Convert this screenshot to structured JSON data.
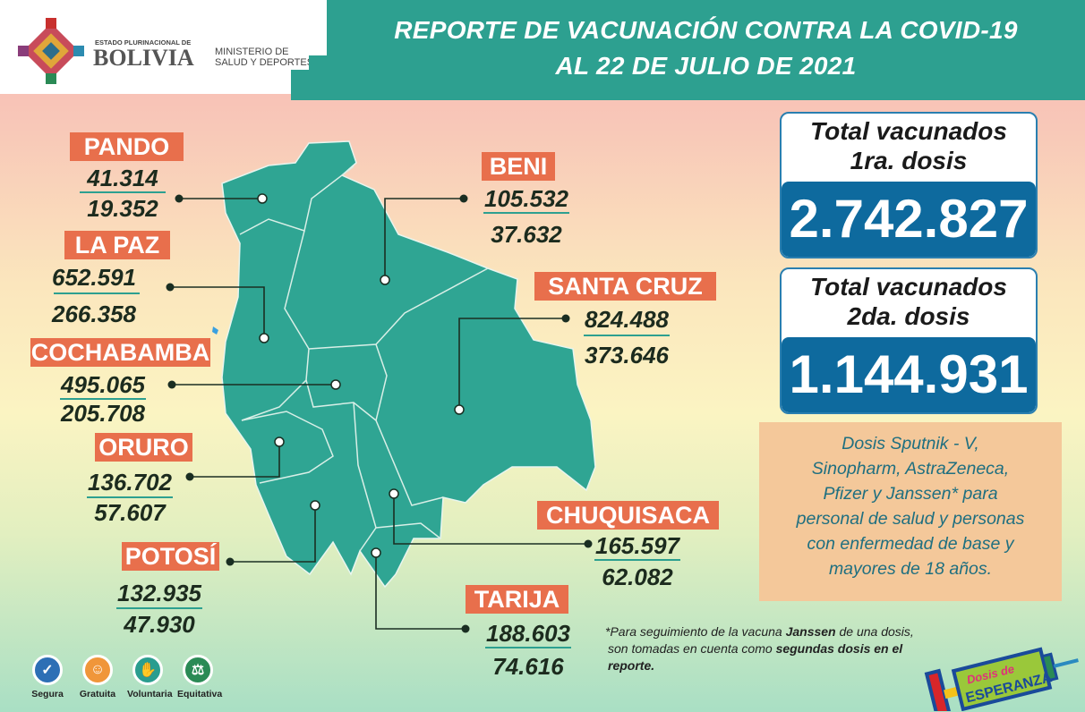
{
  "header": {
    "estado": "ESTADO PLURINACIONAL DE",
    "country": "BOLIVIA",
    "ministry_line1": "MINISTERIO DE",
    "ministry_line2": "SALUD Y DEPORTES",
    "title_line1": "REPORTE DE VACUNACIÓN CONTRA LA COVID-19",
    "title_line2": "AL 22 DE JULIO DE 2021"
  },
  "departments": [
    {
      "name": "PANDO",
      "first": "41.314",
      "second": "19.352"
    },
    {
      "name": "LA PAZ",
      "first": "652.591",
      "second": "266.358"
    },
    {
      "name": "COCHABAMBA",
      "first": "495.065",
      "second": "205.708"
    },
    {
      "name": "ORURO",
      "first": "136.702",
      "second": "57.607"
    },
    {
      "name": "POTOSÍ",
      "first": "132.935",
      "second": "47.930"
    },
    {
      "name": "BENI",
      "first": "105.532",
      "second": "37.632"
    },
    {
      "name": "SANTA CRUZ",
      "first": "824.488",
      "second": "373.646"
    },
    {
      "name": "CHUQUISACA",
      "first": "165.597",
      "second": "62.082"
    },
    {
      "name": "TARIJA",
      "first": "188.603",
      "second": "74.616"
    }
  ],
  "totals": {
    "first": {
      "label1": "Total vacunados",
      "label2": "1ra. dosis",
      "value": "2.742.827"
    },
    "second": {
      "label1": "Total vacunados",
      "label2": "2da. dosis",
      "value": "1.144.931"
    }
  },
  "info": [
    "Dosis Sputnik - V,",
    "Sinopharm, AstraZeneca,",
    "Pfizer y Janssen* para",
    "personal de salud y personas",
    "con enfermedad de base y",
    "mayores de 18 años."
  ],
  "note": {
    "p1": "*Para seguimiento de la vacuna ",
    "b1": "Janssen",
    "p2": " de una dosis,",
    "p3": "son tomadas en cuenta como ",
    "b2": "segundas dosis en el",
    "b3": "reporte."
  },
  "badges": [
    {
      "label": "Segura",
      "icon": "shield-check-icon",
      "color": "#2d6fb5"
    },
    {
      "label": "Gratuita",
      "icon": "smile-icon",
      "color": "#f0963a"
    },
    {
      "label": "Voluntaria",
      "icon": "raised-hand-icon",
      "color": "#2a9d8f"
    },
    {
      "label": "Equitativa",
      "icon": "scales-icon",
      "color": "#2a8a55"
    }
  ],
  "logo": {
    "text1": "Dosis de",
    "text2": "ESPERANZA"
  },
  "colors": {
    "teal": "#2da090",
    "label": "#e86f4c",
    "blue": "#0e6a9e",
    "map": "#2fa593"
  }
}
